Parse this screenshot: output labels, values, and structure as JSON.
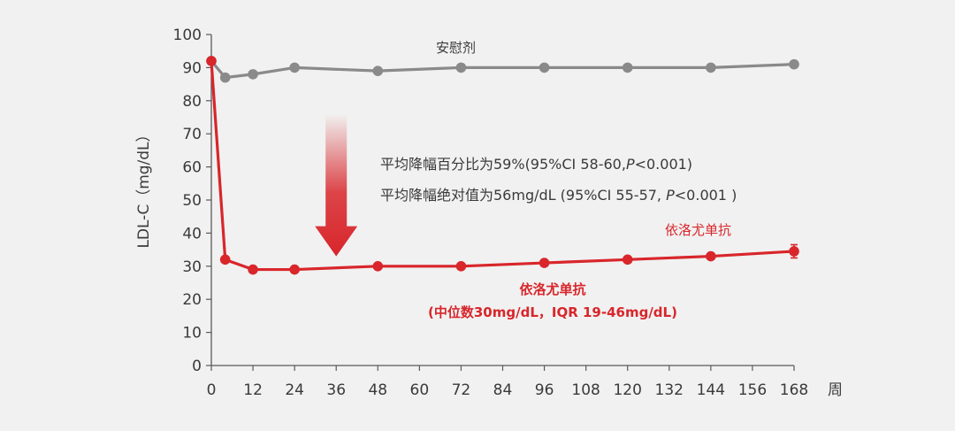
{
  "chart_data": {
    "type": "line",
    "xlabel": "周",
    "ylabel": "LDL-C（mg/dL）",
    "x_ticks": [
      0,
      12,
      24,
      36,
      48,
      60,
      72,
      84,
      96,
      108,
      120,
      132,
      144,
      156,
      168
    ],
    "y_ticks": [
      0,
      10,
      20,
      30,
      40,
      50,
      60,
      70,
      80,
      90,
      100
    ],
    "xlim": [
      0,
      168
    ],
    "ylim": [
      0,
      100
    ],
    "grid": false,
    "series": [
      {
        "name": "安慰剂",
        "color": "#8a8a8a",
        "x": [
          0,
          4,
          12,
          24,
          48,
          72,
          96,
          120,
          144,
          168
        ],
        "y": [
          92,
          87,
          88,
          90,
          89,
          90,
          90,
          90,
          90,
          91
        ]
      },
      {
        "name": "依洛尤单抗",
        "color": "#d8262b",
        "x": [
          0,
          4,
          12,
          24,
          48,
          72,
          96,
          120,
          144,
          168
        ],
        "y": [
          92,
          32,
          29,
          29,
          30,
          30,
          31,
          32,
          33,
          34.5
        ],
        "error_bar_last": [
          32.5,
          36.5
        ]
      }
    ],
    "annotations": {
      "line1": "平均降幅百分比为59%(95%CI 58-60,",
      "line1_p": "P",
      "line1_tail": "<0.001)",
      "line2": "平均降幅绝对值为56mg/dL (95%CI 55-57, ",
      "line2_p": "P",
      "line2_tail": "<0.001 )",
      "red_title": "依洛尤单抗",
      "red_sub": "(中位数30mg/dL，IQR 19-46mg/dL)"
    },
    "arrow": {
      "x": 36,
      "y_top": 76,
      "y_bottom": 33,
      "color": "#d8262b"
    }
  }
}
